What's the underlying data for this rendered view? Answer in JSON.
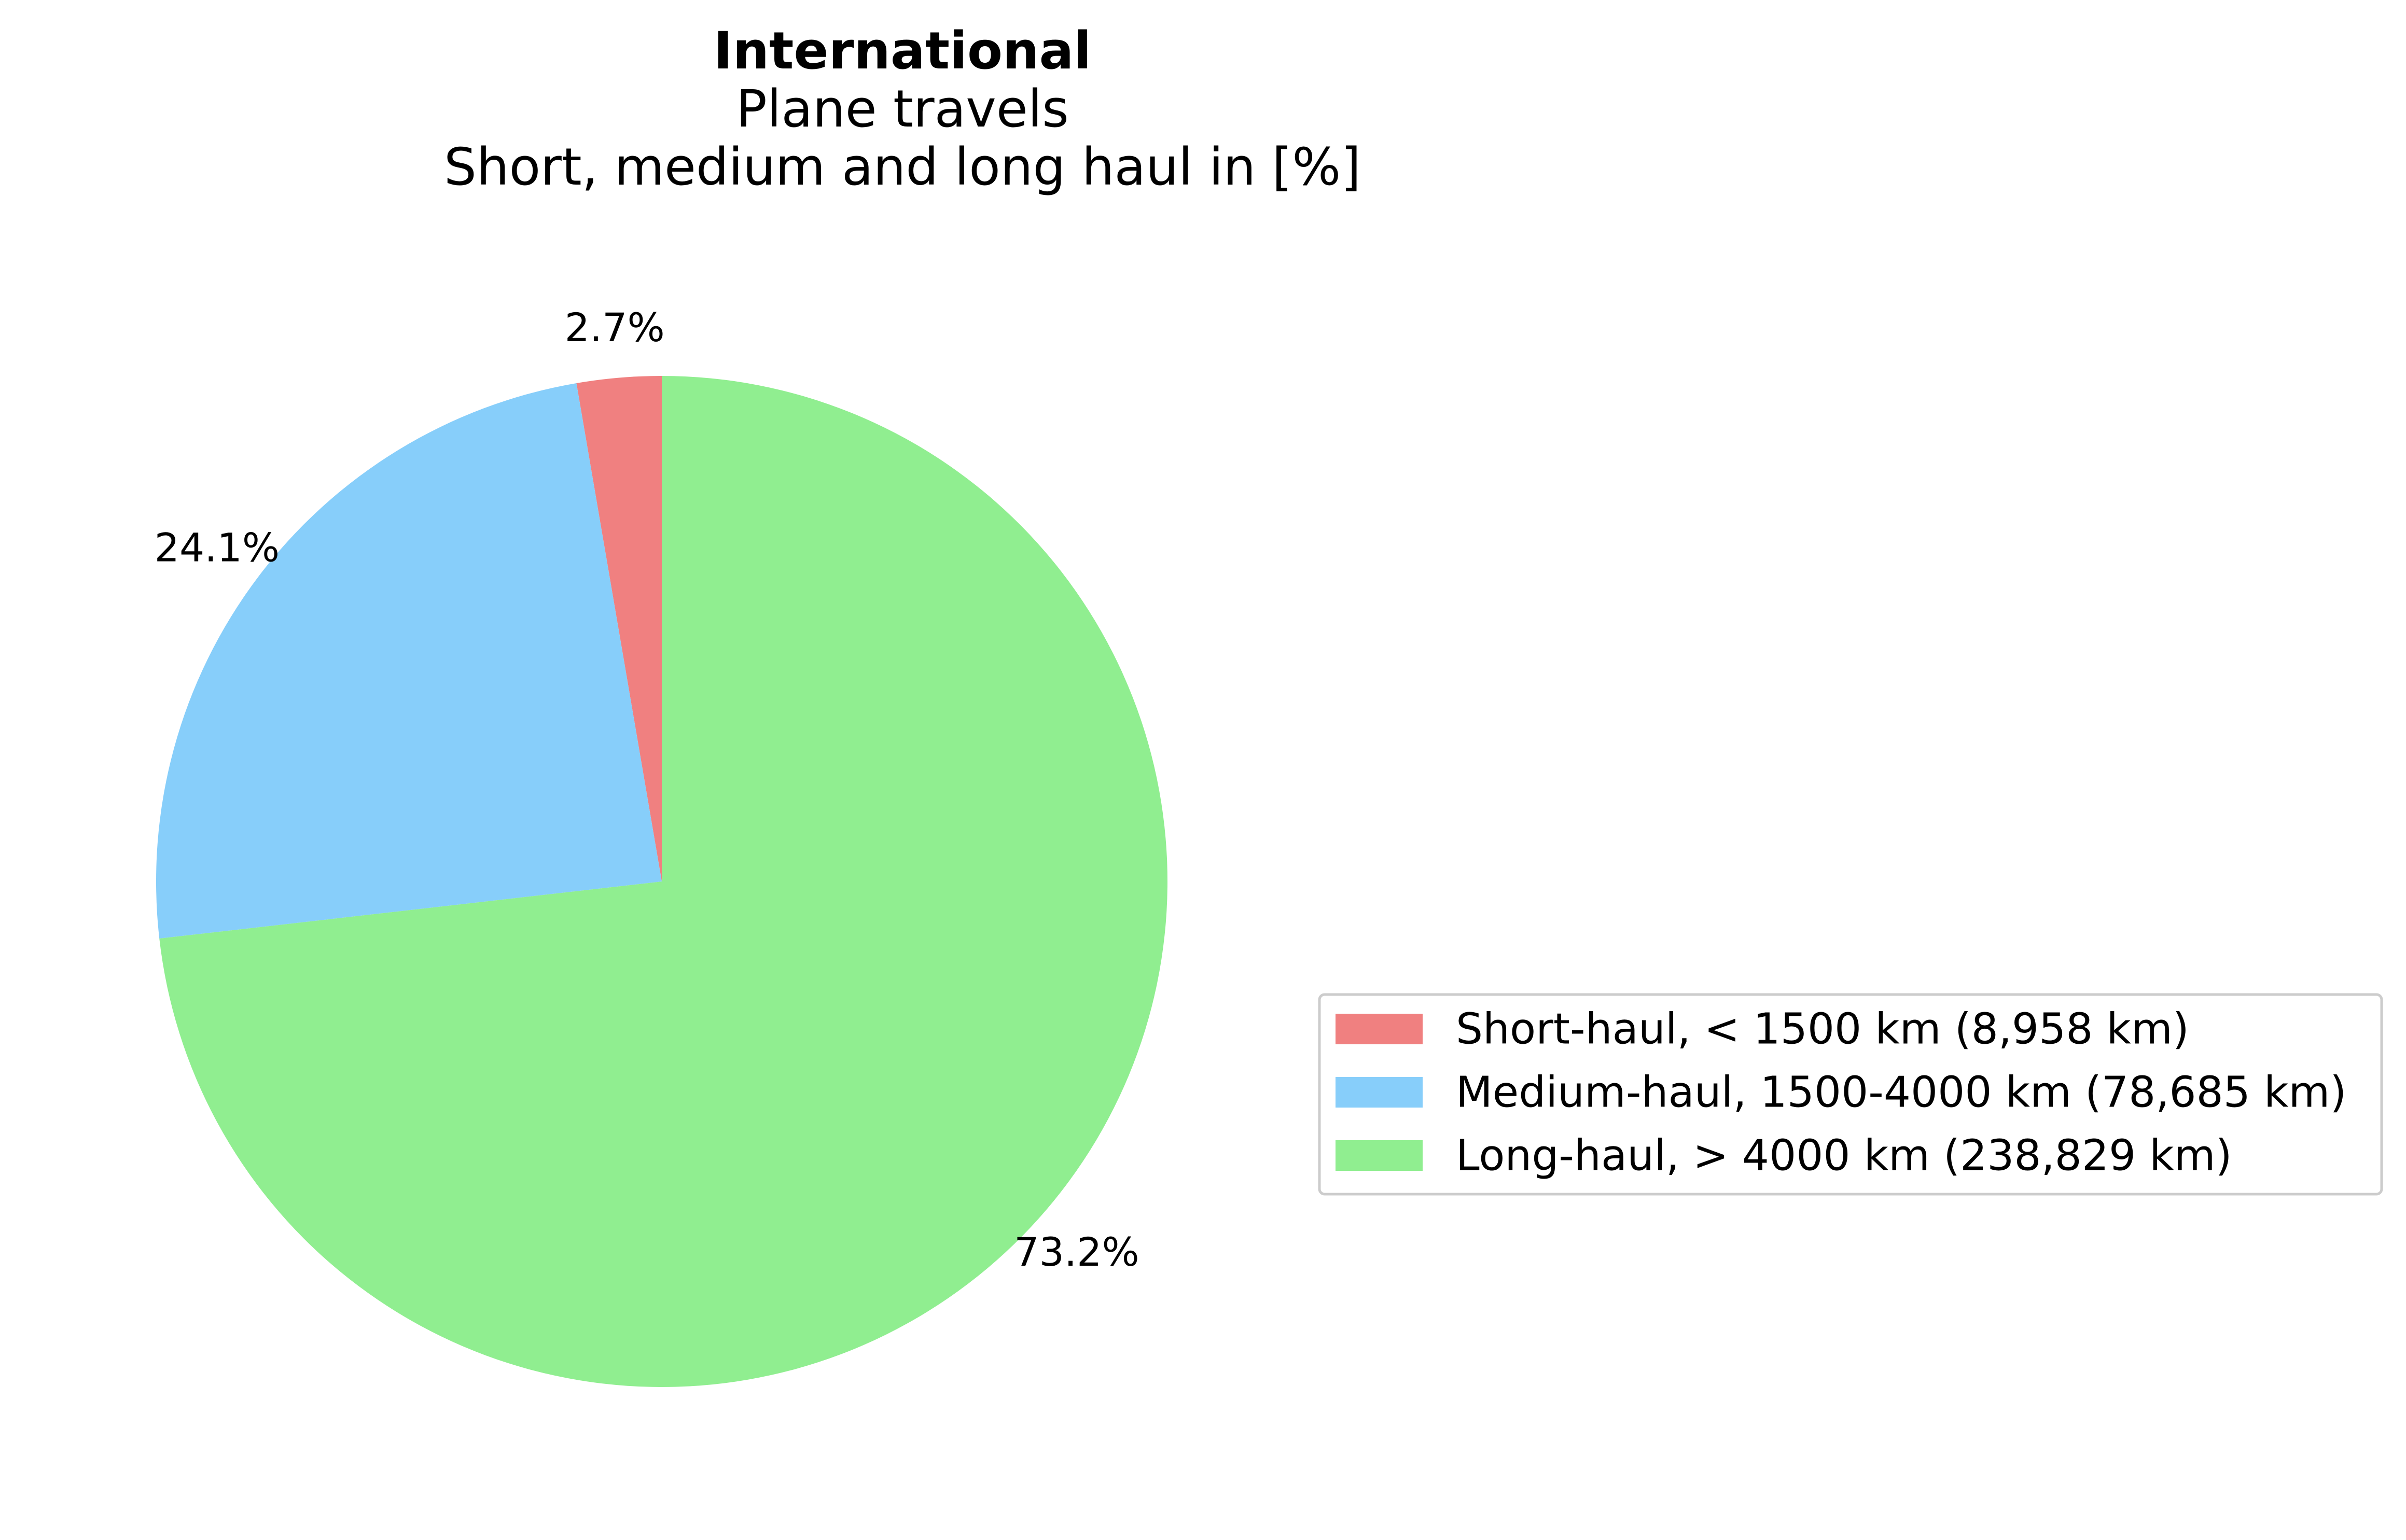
{
  "chart_data": {
    "type": "pie",
    "title": "International",
    "subtitle_lines": [
      "Plane travels",
      "Short, medium and long haul in [%]"
    ],
    "slices": [
      {
        "label": "Short-haul, < 1500 km (8,958 km)",
        "value": 2.7,
        "pct_label": "2.7%",
        "color": "#f08080"
      },
      {
        "label": "Medium-haul, 1500-4000 km (78,685 km)",
        "value": 24.1,
        "pct_label": "24.1%",
        "color": "#87cefa"
      },
      {
        "label": "Long-haul, > 4000 km (238,829 km)",
        "value": 73.2,
        "pct_label": "73.2%",
        "color": "#90ee90"
      }
    ],
    "start_angle_deg": 90,
    "direction": "counterclockwise",
    "legend_position": "right"
  }
}
